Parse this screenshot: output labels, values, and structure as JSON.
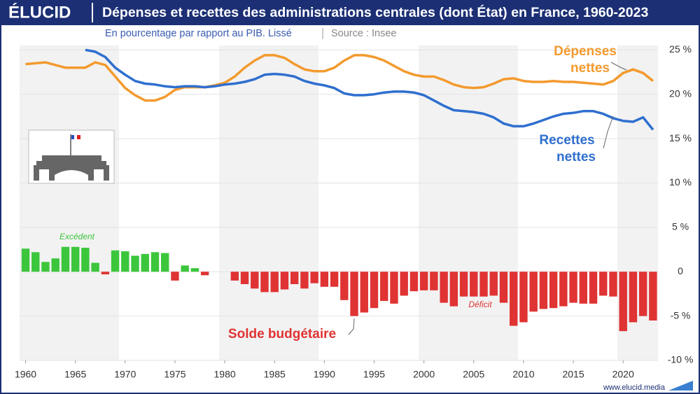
{
  "header": {
    "logo": "ÉLUCID",
    "source": "Source : Insee",
    "footer": "www.elucid.media"
  },
  "chart_data": {
    "type": "bar_line",
    "title": "Dépenses et recettes des administrations centrales (dont État) en France, 1960-2023",
    "subtitle": "En pourcentage par rapport au PIB. Lissé",
    "x": [
      1960,
      1961,
      1962,
      1963,
      1964,
      1965,
      1966,
      1967,
      1968,
      1969,
      1970,
      1971,
      1972,
      1973,
      1974,
      1975,
      1976,
      1977,
      1978,
      1979,
      1980,
      1981,
      1982,
      1983,
      1984,
      1985,
      1986,
      1987,
      1988,
      1989,
      1990,
      1991,
      1992,
      1993,
      1994,
      1995,
      1996,
      1997,
      1998,
      1999,
      2000,
      2001,
      2002,
      2003,
      2004,
      2005,
      2006,
      2007,
      2008,
      2009,
      2010,
      2011,
      2012,
      2013,
      2014,
      2015,
      2016,
      2017,
      2018,
      2019,
      2020,
      2021,
      2022,
      2023
    ],
    "xlim": [
      1959.4,
      2023.5
    ],
    "xticks": [
      1960,
      1965,
      1970,
      1975,
      1980,
      1985,
      1990,
      1995,
      2000,
      2005,
      2010,
      2015,
      2020
    ],
    "ylim": [
      -10,
      25.5
    ],
    "yticks": [
      {
        "value": -10,
        "label": "-10 %"
      },
      {
        "value": -5,
        "label": "-5 %"
      },
      0,
      {
        "value": 5,
        "label": "5 %"
      },
      {
        "value": 10,
        "label": "10 %"
      },
      {
        "value": 15,
        "label": "15 %"
      },
      {
        "value": 20,
        "label": "20 %"
      },
      {
        "value": 25,
        "label": "25 %"
      }
    ],
    "grid": true,
    "series": [
      {
        "type": "bar",
        "name": "Solde budgétaire",
        "positive_label": "Excédent",
        "negative_label": "Déficit",
        "positive_color": "#3cc63c",
        "negative_color": "#e03333",
        "values": [
          2.6,
          2.2,
          1.1,
          1.5,
          2.8,
          2.8,
          2.7,
          1.0,
          -0.3,
          2.4,
          2.3,
          1.8,
          2.0,
          2.2,
          2.1,
          -1.0,
          0.7,
          0.4,
          -0.4,
          0,
          0,
          -1.0,
          -1.4,
          -1.9,
          -2.3,
          -2.3,
          -2.0,
          -1.4,
          -1.9,
          -1.3,
          -1.7,
          -1.7,
          -3.2,
          -5.0,
          -4.6,
          -4.1,
          -3.3,
          -3.6,
          -2.7,
          -2.2,
          -2.1,
          -2.1,
          -3.5,
          -3.9,
          -2.8,
          -2.8,
          -2.8,
          -2.7,
          -3.5,
          -6.1,
          -5.7,
          -4.5,
          -4.2,
          -4.1,
          -3.9,
          -3.5,
          -3.6,
          -3.6,
          -2.7,
          -2.8,
          -6.7,
          -5.7,
          -5.0,
          -5.5
        ]
      },
      {
        "type": "line",
        "name_lines": [
          "Dépenses",
          "nettes"
        ],
        "color": "#f39a2e",
        "values": [
          23.4,
          23.5,
          23.6,
          23.3,
          23.0,
          23.0,
          23.0,
          23.6,
          23.3,
          22.0,
          20.7,
          19.9,
          19.3,
          19.3,
          19.7,
          20.5,
          20.8,
          20.8,
          20.8,
          21.0,
          21.3,
          22.0,
          23.0,
          23.8,
          24.4,
          24.4,
          24.1,
          23.4,
          22.8,
          22.6,
          22.6,
          23.0,
          23.8,
          24.4,
          24.4,
          24.2,
          23.8,
          23.2,
          22.6,
          22.2,
          22.0,
          22.0,
          21.6,
          21.1,
          20.8,
          20.7,
          20.8,
          21.2,
          21.7,
          21.8,
          21.5,
          21.4,
          21.4,
          21.5,
          21.4,
          21.4,
          21.3,
          21.2,
          21.1,
          21.5,
          22.4,
          22.8,
          22.4,
          21.5
        ]
      },
      {
        "type": "line",
        "name_lines": [
          "Recettes",
          "nettes"
        ],
        "color": "#2f6fcf",
        "values": [
          null,
          null,
          null,
          null,
          null,
          null,
          25.0,
          24.8,
          24.2,
          23.0,
          22.2,
          21.5,
          21.2,
          21.1,
          20.9,
          20.8,
          20.9,
          20.9,
          20.8,
          20.9,
          21.1,
          21.2,
          21.4,
          21.7,
          22.2,
          22.3,
          22.2,
          22.0,
          21.5,
          21.2,
          21.0,
          20.7,
          20.1,
          19.9,
          19.9,
          20.0,
          20.2,
          20.3,
          20.3,
          20.2,
          19.9,
          19.3,
          18.7,
          18.2,
          18.1,
          18.0,
          17.8,
          17.4,
          16.7,
          16.4,
          16.4,
          16.7,
          17.1,
          17.5,
          17.8,
          17.9,
          18.1,
          18.1,
          17.8,
          17.3,
          17.0,
          16.9,
          17.4,
          16.0
        ]
      }
    ]
  }
}
